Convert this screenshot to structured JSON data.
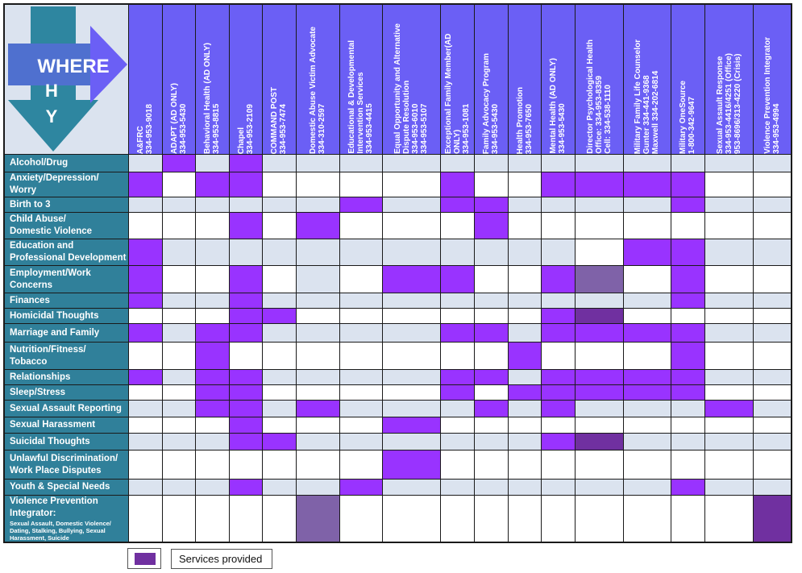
{
  "header_graphic": {
    "words": [
      "WHERE",
      "H",
      "Y"
    ],
    "arrow_color": "#2e86a0",
    "accent_color": "#6b5ff5",
    "text_color": "#ffffff"
  },
  "colors": {
    "column_header_bg": "#6b5ff5",
    "row_header_bg": "#30809a",
    "service_provided": "#9933ff",
    "service_alt_shade": "#7f62a8",
    "service_dark_shade": "#7030a0",
    "stripe": "#dbe3ef"
  },
  "columns": [
    {
      "name": "A&FRC",
      "detail": "334-953-9018"
    },
    {
      "name": "ADAPT (AD ONLY)",
      "detail": "334-953-5430"
    },
    {
      "name": "Behavioral Health (AD ONLY)",
      "detail": "334-953-8815"
    },
    {
      "name": "Chapel",
      "detail": "334-953-2109"
    },
    {
      "name": "COMMAND POST",
      "detail": "334-953-7474"
    },
    {
      "name": "Domestic Abuse Victim Advocate",
      "detail": "334-310-2597"
    },
    {
      "name": "Educational & Developmental\nIntervention Services",
      "detail": "334-953-4415"
    },
    {
      "name": "Equal Opportunity and Alternative\nDispute Resolution",
      "detail": "334-953-6010\n334-953-5107"
    },
    {
      "name": "Exceptional Family Member(AD ONLY)",
      "detail": "334-953-1081"
    },
    {
      "name": "Family Advocacy Program",
      "detail": "334-953-5430"
    },
    {
      "name": "Health Promotion",
      "detail": "334-953-7650"
    },
    {
      "name": "Mental Health (AD ONLY)",
      "detail": "334-953-5430"
    },
    {
      "name": "Director Psychological Health\nOffice: 334-953-8359\nCell: 334-538-1110",
      "detail": ""
    },
    {
      "name": "Military Family Life Counselor",
      "detail": "Gunter 334-441-9368\nMaxwell 334-202-6814"
    },
    {
      "name": "Military OneSource",
      "detail": "1-800-342-9647"
    },
    {
      "name": "Sexual Assault Response",
      "detail": "334-953-4416/4251 (Office)\n953-8696/313-4220 (Crisis)"
    },
    {
      "name": "Violence Prevention Integrator",
      "detail": "334-953-4994"
    }
  ],
  "rows": [
    {
      "label": "Alcohol/Drug",
      "sub": "",
      "cells": "0a1a0a1a0a0a0a0a0a0a0a0a0a0a0a0a0a"
    },
    {
      "label": "Anxiety/Depression/ Worry",
      "sub": "",
      "cells": "1w0w1w1w0w0w0w0w1w0w0w1w1w1w1w0w0w"
    },
    {
      "label": "Birth to 3",
      "sub": "",
      "cells": "0a0a0a0a0a0a1a0a1a1a0a0a0a0a1a0a0a"
    },
    {
      "label": "Child Abuse/\nDomestic Violence",
      "sub": "",
      "cells": "0w0w0w1w0w1w0w0w0w1w0w0w0w0w0w0w0w"
    },
    {
      "label": "Education and\nProfessional Development",
      "sub": "",
      "cells": "1a0a0a0a0a0a0a0a0a0a0a0a0w1a1a0a0a"
    },
    {
      "label": "Employment/Work\nConcerns",
      "sub": "",
      "cells": "1w0w0w1w0w0a0w1w1w0w0w1w2w0w1w0w0w"
    },
    {
      "label": "Finances",
      "sub": "",
      "cells": "1a0a0a1a0a0a0a0a0a0a0a0a0a0a1a0a0a"
    },
    {
      "label": "Homicidal Thoughts",
      "sub": "",
      "cells": "0w0w0w1w1w0w0w0w0w0w0w1w3w0w0w0w0w"
    },
    {
      "label": "Marriage and Family",
      "sub": "",
      "cells": "1a0a1a1a0a0a0a0a1a1a0a1a1a1a1a0a0a"
    },
    {
      "label": "Nutrition/Fitness/\nTobacco",
      "sub": "",
      "cells": "0w0w1w0w0w0w0w0w0w0w1w0w0w0w1w0w0w"
    },
    {
      "label": "Relationships",
      "sub": "",
      "cells": "1a0a1a1a0a0a0a0a1a1a0a1a1a1a1a0a0a"
    },
    {
      "label": "Sleep/Stress",
      "sub": "",
      "cells": "0w0w1w1w0w0w0w0w1w0w1w1w1w1w1w0w0w"
    },
    {
      "label": "Sexual Assault Reporting",
      "sub": "",
      "cells": "0a0a1a1a0a1a0a0a0a1a0a1a0a0a0a1a0a"
    },
    {
      "label": "Sexual Harassment",
      "sub": "",
      "cells": "0w0w0w1w0w0w0w1w0w0w0w0w0w0w0w0w0w"
    },
    {
      "label": "Suicidal Thoughts",
      "sub": "",
      "cells": "0a0a0a1a1a0a0a0a0a0a0a1a3a0a0a0a0a"
    },
    {
      "label": "Unlawful Discrimination/\nWork Place Disputes",
      "sub": "",
      "cells": "0w0w0w0w0w0w0w1w0w0w0w0w0w0w0w0w0w"
    },
    {
      "label": "Youth & Special Needs",
      "sub": "",
      "cells": "0a0a0a1a0a0a1a0a0a0a0a0a0a0a1a0a0a"
    },
    {
      "label": "Violence Prevention\nIntegrator:",
      "sub": "Sexual Assault, Domestic Violence/ Dating, Stalking, Bullying, Sexual Harassment, Suicide",
      "cells": "0w0w0w0w0w2w0w0w0w0w0w0w0w0w0w0w3w"
    }
  ],
  "legend": {
    "label": "Services provided",
    "swatch_color": "#7030a0"
  }
}
